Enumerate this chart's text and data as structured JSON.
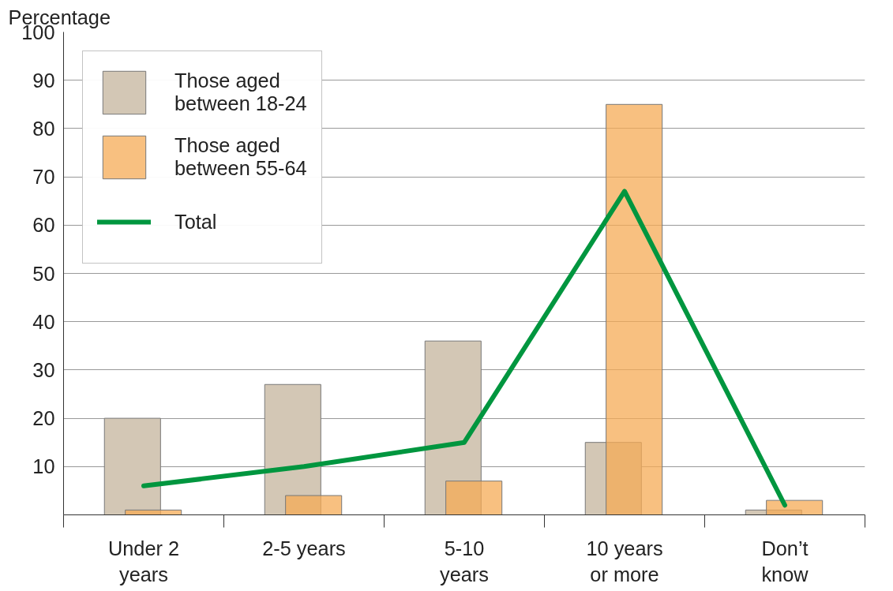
{
  "chart_data": {
    "type": "bar",
    "ylabel": "Percentage",
    "categories": [
      "Under 2 years",
      "2-5 years",
      "5-10 years",
      "10 years or more",
      "Don’t know"
    ],
    "series": [
      {
        "name": "Those aged between 18-24",
        "color": "#d3c7b5",
        "values": [
          20,
          27,
          36,
          15,
          1
        ]
      },
      {
        "name": "Those aged between 55-64",
        "color": "#f5ab55",
        "values": [
          1,
          4,
          7,
          85,
          3
        ]
      },
      {
        "name": "Total",
        "type": "line",
        "color": "#00963f",
        "values": [
          6,
          10,
          15,
          67,
          2
        ]
      }
    ],
    "ylim": [
      0,
      100
    ],
    "yticks": [
      10,
      20,
      30,
      40,
      50,
      60,
      70,
      80,
      90,
      100
    ],
    "grid": "y",
    "legend": "top left"
  }
}
